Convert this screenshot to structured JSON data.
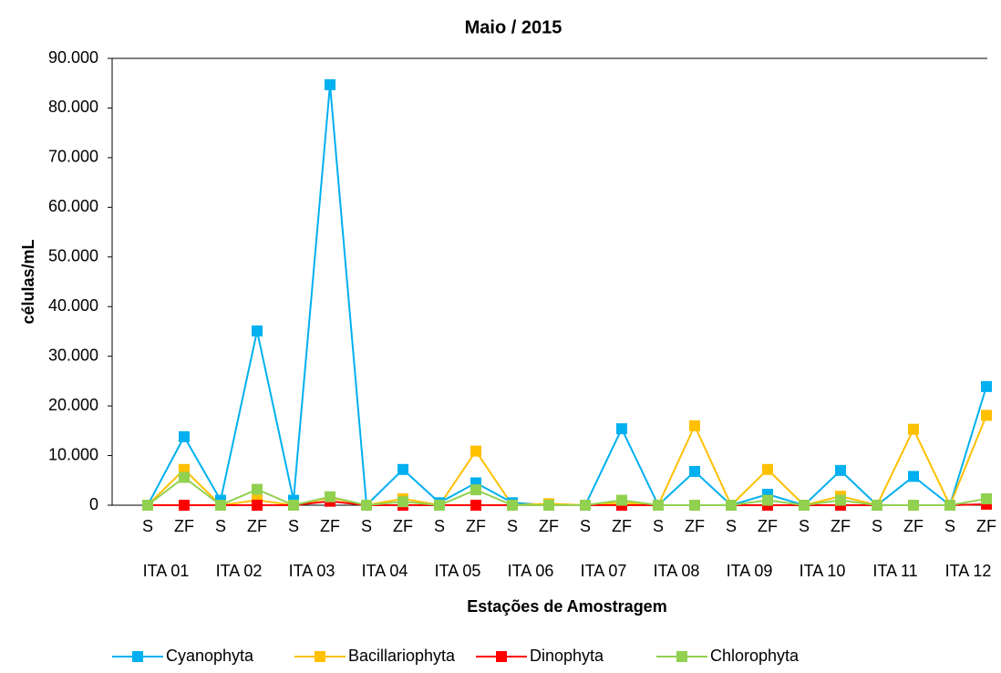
{
  "chart_data": {
    "type": "line",
    "title": "Maio / 2015",
    "x_label": "Estações de Amostragem",
    "y_label": "células/mL",
    "categories": [
      "S",
      "ZF",
      "S",
      "ZF",
      "S",
      "ZF",
      "S",
      "ZF",
      "S",
      "ZF",
      "S",
      "ZF",
      "S",
      "ZF",
      "S",
      "ZF",
      "S",
      "ZF",
      "S",
      "ZF",
      "S",
      "ZF",
      "S",
      "ZF"
    ],
    "groups": [
      "ITA 01",
      "ITA 02",
      "ITA 03",
      "ITA 04",
      "ITA 05",
      "ITA 06",
      "ITA 07",
      "ITA 08",
      "ITA 09",
      "ITA 10",
      "ITA 11",
      "ITA 12"
    ],
    "ylim": [
      0,
      90000
    ],
    "yticks": [
      0,
      {
        "value": 10000,
        "label": "10.000"
      },
      {
        "value": 20000,
        "label": "20.000"
      },
      {
        "value": 30000,
        "label": "30.000"
      },
      {
        "value": 40000,
        "label": "40.000"
      },
      {
        "value": 50000,
        "label": "50.000"
      },
      {
        "value": 60000,
        "label": "60.000"
      },
      {
        "value": 70000,
        "label": "70.000"
      },
      {
        "value": 80000,
        "label": "80.000"
      },
      {
        "value": 90000,
        "label": "90.000"
      }
    ],
    "grid": false,
    "legend": "bottom",
    "series": [
      {
        "name": "Cyanophyta",
        "color": "#00b0f0",
        "values": [
          0,
          13800,
          1000,
          35100,
          1000,
          84700,
          0,
          7200,
          500,
          4500,
          500,
          0,
          0,
          15400,
          0,
          6800,
          0,
          2200,
          0,
          7000,
          0,
          5800,
          0,
          23900
        ]
      },
      {
        "name": "Bacillariophyta",
        "color": "#ffc000",
        "values": [
          0,
          7200,
          0,
          1000,
          0,
          1500,
          0,
          1300,
          0,
          10900,
          0,
          300,
          0,
          500,
          0,
          16000,
          0,
          7200,
          0,
          1800,
          0,
          15300,
          0,
          18100
        ]
      },
      {
        "name": "Dinophyta",
        "color": "#ff0000",
        "values": [
          0,
          0,
          0,
          0,
          0,
          800,
          0,
          0,
          0,
          0,
          0,
          0,
          0,
          0,
          0,
          0,
          0,
          0,
          0,
          0,
          0,
          0,
          0,
          200
        ]
      },
      {
        "name": "Chlorophyta",
        "color": "#92d050",
        "values": [
          0,
          5600,
          0,
          3200,
          0,
          1700,
          0,
          700,
          0,
          3100,
          0,
          0,
          0,
          1000,
          0,
          0,
          0,
          1000,
          0,
          1000,
          0,
          0,
          0,
          1300
        ]
      }
    ]
  }
}
